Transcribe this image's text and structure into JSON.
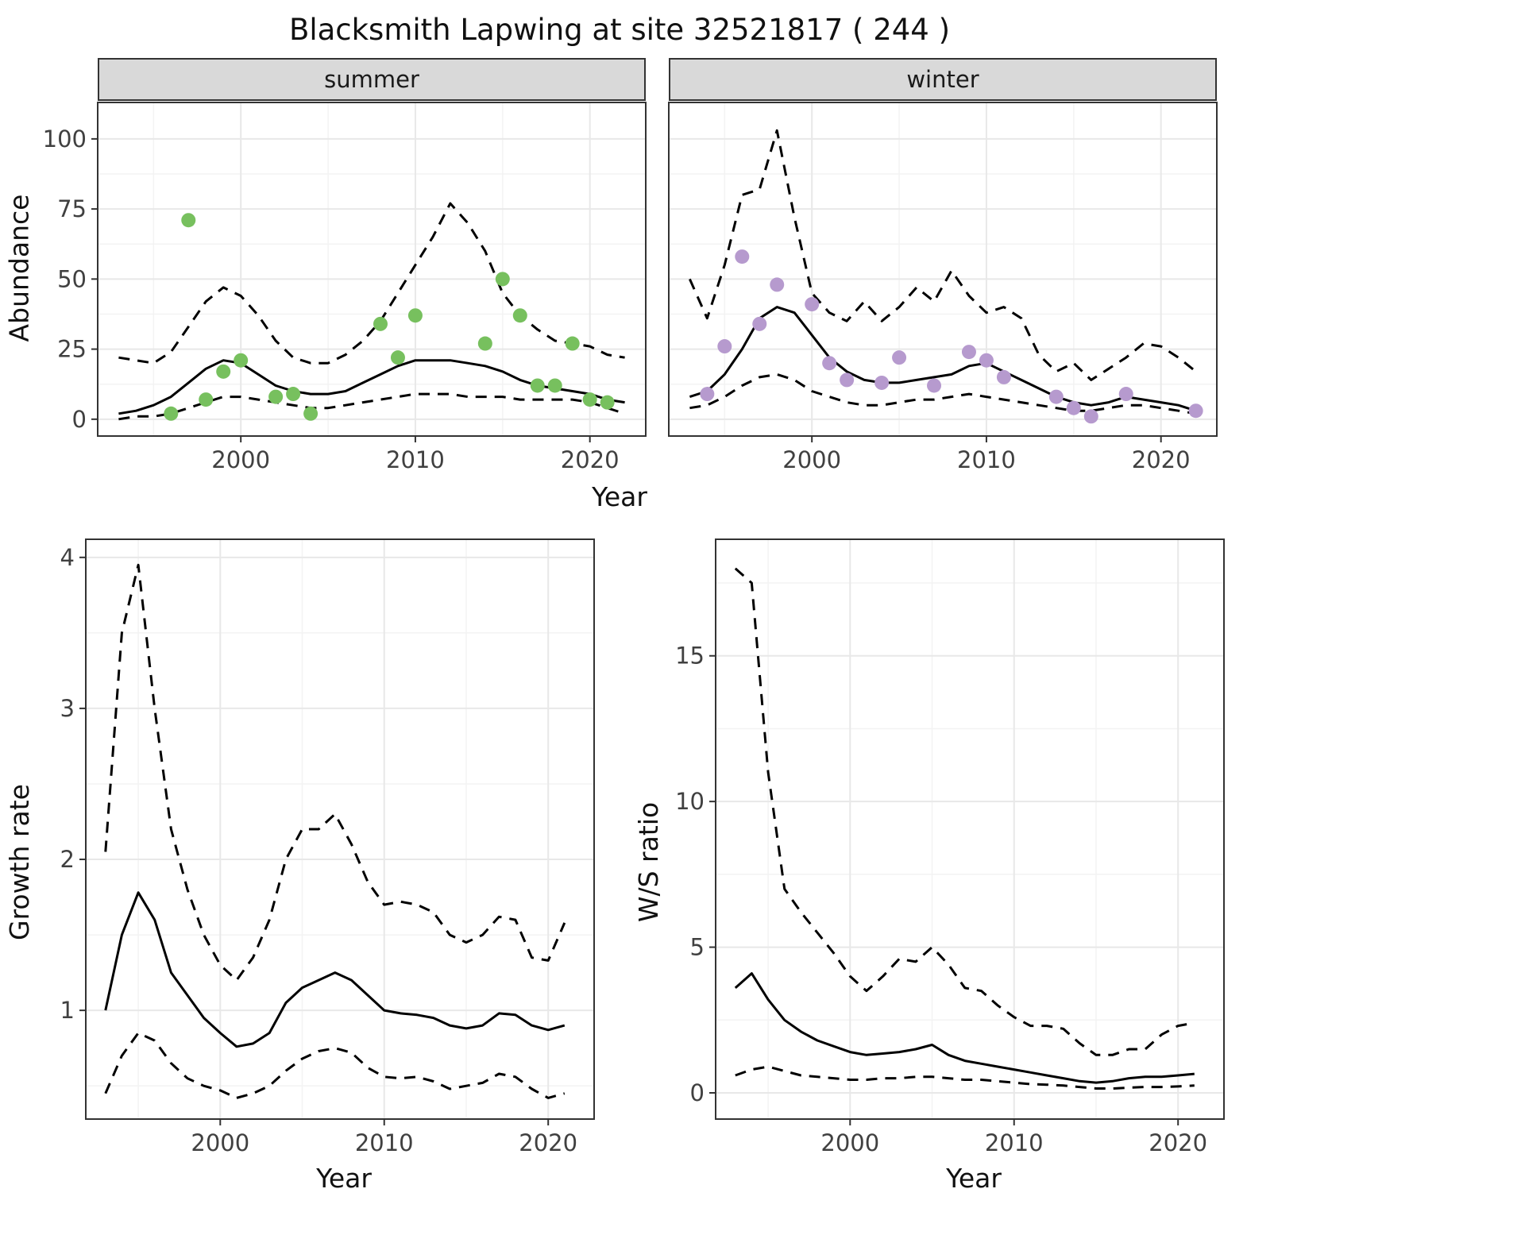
{
  "title": "Blacksmith Lapwing at site 32521817 ( 244 )",
  "top": {
    "ylabel": "Abundance",
    "xlabel": "Year",
    "facets": [
      {
        "label": "summer"
      },
      {
        "label": "winter"
      }
    ]
  },
  "bottom_left": {
    "ylabel": "Growth rate",
    "xlabel": "Year"
  },
  "bottom_right": {
    "ylabel": "W/S ratio",
    "xlabel": "Year"
  },
  "colors": {
    "summer_point": "#77c05e",
    "winter_point": "#b69ace",
    "line": "#000000",
    "grid_major": "#e8e8e8",
    "grid_minor": "#f3f3f3",
    "panel_border": "#333333",
    "strip_bg": "#d9d9d9",
    "tick_label": "#404040"
  },
  "chart_data": [
    {
      "target": "panel-summer",
      "type": "line",
      "facet": "summer",
      "xlabel": "Year",
      "ylabel": "Abundance",
      "xlim": [
        1991.8,
        2023.2
      ],
      "ylim": [
        -6,
        113
      ],
      "xticks": [
        2000,
        2010,
        2020
      ],
      "xminor": [
        1995,
        2005,
        2015
      ],
      "yticks": [
        0,
        25,
        50,
        75,
        100
      ],
      "yminor": [
        12.5,
        37.5,
        62.5,
        87.5
      ],
      "years": [
        1993,
        1994,
        1995,
        1996,
        1997,
        1998,
        1999,
        2000,
        2001,
        2002,
        2003,
        2004,
        2005,
        2006,
        2007,
        2008,
        2009,
        2010,
        2011,
        2012,
        2013,
        2014,
        2015,
        2016,
        2017,
        2018,
        2019,
        2020,
        2021,
        2022
      ],
      "series": [
        {
          "name": "ci_upper",
          "style": "dashed",
          "y": [
            22,
            21,
            20,
            24,
            33,
            42,
            47,
            44,
            37,
            28,
            22,
            20,
            20,
            23,
            28,
            35,
            45,
            55,
            65,
            77,
            70,
            60,
            45,
            37,
            32,
            28,
            27,
            26,
            23,
            22
          ]
        },
        {
          "name": "ci_lower",
          "style": "dashed",
          "y": [
            0,
            1,
            1,
            2,
            4,
            6,
            8,
            8,
            7,
            6,
            5,
            4,
            4,
            5,
            6,
            7,
            8,
            9,
            9,
            9,
            8,
            8,
            8,
            7,
            7,
            7,
            7,
            6,
            4,
            2
          ]
        },
        {
          "name": "mean",
          "style": "solid",
          "y": [
            2,
            3,
            5,
            8,
            13,
            18,
            21,
            20,
            16,
            12,
            10,
            9,
            9,
            10,
            13,
            16,
            19,
            21,
            21,
            21,
            20,
            19,
            17,
            14,
            12,
            11,
            10,
            9,
            7,
            6
          ]
        },
        {
          "name": "observed_counts",
          "style": "points",
          "color_key": "summer_point",
          "x": [
            1996,
            1997,
            1998,
            1999,
            2000,
            2002,
            2003,
            2004,
            2008,
            2009,
            2010,
            2014,
            2015,
            2016,
            2017,
            2018,
            2019,
            2020,
            2021
          ],
          "y": [
            2,
            71,
            7,
            17,
            21,
            8,
            9,
            2,
            34,
            22,
            37,
            27,
            50,
            37,
            12,
            12,
            27,
            7,
            6
          ]
        }
      ]
    },
    {
      "target": "panel-winter",
      "type": "line",
      "facet": "winter",
      "xlabel": "Year",
      "ylabel": "Abundance",
      "xlim": [
        1991.8,
        2023.2
      ],
      "ylim": [
        -6,
        113
      ],
      "xticks": [
        2000,
        2010,
        2020
      ],
      "xminor": [
        1995,
        2005,
        2015
      ],
      "yticks": [
        0,
        25,
        50,
        75,
        100
      ],
      "yminor": [
        12.5,
        37.5,
        62.5,
        87.5
      ],
      "years": [
        1993,
        1994,
        1995,
        1996,
        1997,
        1998,
        1999,
        2000,
        2001,
        2002,
        2003,
        2004,
        2005,
        2006,
        2007,
        2008,
        2009,
        2010,
        2011,
        2012,
        2013,
        2014,
        2015,
        2016,
        2017,
        2018,
        2019,
        2020,
        2021,
        2022
      ],
      "series": [
        {
          "name": "ci_upper",
          "style": "dashed",
          "y": [
            50,
            36,
            55,
            80,
            82,
            103,
            72,
            45,
            38,
            35,
            42,
            35,
            40,
            47,
            42,
            53,
            44,
            38,
            40,
            36,
            23,
            17,
            20,
            14,
            18,
            22,
            27,
            26,
            22,
            17
          ]
        },
        {
          "name": "ci_lower",
          "style": "dashed",
          "y": [
            4,
            5,
            8,
            12,
            15,
            16,
            14,
            10,
            8,
            6,
            5,
            5,
            6,
            7,
            7,
            8,
            9,
            8,
            7,
            6,
            5,
            4,
            3,
            3,
            4,
            5,
            5,
            4,
            3,
            2
          ]
        },
        {
          "name": "mean",
          "style": "solid",
          "y": [
            8,
            10,
            16,
            25,
            36,
            40,
            38,
            30,
            22,
            17,
            14,
            13,
            13,
            14,
            15,
            16,
            19,
            20,
            17,
            14,
            11,
            8,
            6,
            5,
            6,
            8,
            7,
            6,
            5,
            3
          ]
        },
        {
          "name": "observed_counts",
          "style": "points",
          "color_key": "winter_point",
          "x": [
            1994,
            1995,
            1996,
            1997,
            1998,
            2000,
            2001,
            2002,
            2004,
            2005,
            2007,
            2009,
            2010,
            2011,
            2014,
            2015,
            2016,
            2018,
            2022
          ],
          "y": [
            9,
            26,
            58,
            34,
            48,
            41,
            20,
            14,
            13,
            22,
            12,
            24,
            21,
            15,
            8,
            4,
            1,
            9,
            3
          ]
        }
      ]
    },
    {
      "target": "panel-growth",
      "type": "line",
      "xlabel": "Year",
      "ylabel": "Growth rate",
      "xlim": [
        1991.8,
        2022.8
      ],
      "ylim": [
        0.28,
        4.12
      ],
      "xticks": [
        2000,
        2010,
        2020
      ],
      "xminor": [
        1995,
        2005,
        2015
      ],
      "yticks": [
        1,
        2,
        3,
        4
      ],
      "yminor": [
        0.5,
        1.5,
        2.5,
        3.5
      ],
      "years": [
        1993,
        1994,
        1995,
        1996,
        1997,
        1998,
        1999,
        2000,
        2001,
        2002,
        2003,
        2004,
        2005,
        2006,
        2007,
        2008,
        2009,
        2010,
        2011,
        2012,
        2013,
        2014,
        2015,
        2016,
        2017,
        2018,
        2019,
        2020,
        2021
      ],
      "series": [
        {
          "name": "ci_upper",
          "style": "dashed",
          "y": [
            2.05,
            3.5,
            3.95,
            3.0,
            2.2,
            1.8,
            1.5,
            1.3,
            1.2,
            1.35,
            1.6,
            2.0,
            2.2,
            2.2,
            2.3,
            2.1,
            1.85,
            1.7,
            1.72,
            1.7,
            1.65,
            1.5,
            1.45,
            1.5,
            1.62,
            1.6,
            1.35,
            1.33,
            1.58
          ]
        },
        {
          "name": "ci_lower",
          "style": "dashed",
          "y": [
            0.45,
            0.7,
            0.85,
            0.8,
            0.65,
            0.55,
            0.5,
            0.47,
            0.42,
            0.45,
            0.5,
            0.6,
            0.68,
            0.73,
            0.75,
            0.72,
            0.62,
            0.56,
            0.55,
            0.56,
            0.53,
            0.48,
            0.5,
            0.52,
            0.58,
            0.56,
            0.48,
            0.42,
            0.45
          ]
        },
        {
          "name": "mean",
          "style": "solid",
          "y": [
            1.0,
            1.5,
            1.78,
            1.6,
            1.25,
            1.1,
            0.95,
            0.85,
            0.76,
            0.78,
            0.85,
            1.05,
            1.15,
            1.2,
            1.25,
            1.2,
            1.1,
            1.0,
            0.98,
            0.97,
            0.95,
            0.9,
            0.88,
            0.9,
            0.98,
            0.97,
            0.9,
            0.87,
            0.9
          ]
        }
      ]
    },
    {
      "target": "panel-ws",
      "type": "line",
      "xlabel": "Year",
      "ylabel": "W/S ratio",
      "xlim": [
        1991.8,
        2022.8
      ],
      "ylim": [
        -0.9,
        19
      ],
      "xticks": [
        2000,
        2010,
        2020
      ],
      "xminor": [
        1995,
        2005,
        2015
      ],
      "yticks": [
        0,
        5,
        10,
        15
      ],
      "yminor": [
        2.5,
        7.5,
        12.5,
        17.5
      ],
      "years": [
        1993,
        1994,
        1995,
        1996,
        1997,
        1998,
        1999,
        2000,
        2001,
        2002,
        2003,
        2004,
        2005,
        2006,
        2007,
        2008,
        2009,
        2010,
        2011,
        2012,
        2013,
        2014,
        2015,
        2016,
        2017,
        2018,
        2019,
        2020,
        2021
      ],
      "series": [
        {
          "name": "ci_upper",
          "style": "dashed",
          "y": [
            18.0,
            17.5,
            11.0,
            7.0,
            6.2,
            5.5,
            4.8,
            4.0,
            3.5,
            4.0,
            4.6,
            4.5,
            5.0,
            4.4,
            3.6,
            3.5,
            3.0,
            2.6,
            2.3,
            2.3,
            2.2,
            1.7,
            1.3,
            1.3,
            1.5,
            1.5,
            2.0,
            2.3,
            2.4
          ]
        },
        {
          "name": "ci_lower",
          "style": "dashed",
          "y": [
            0.6,
            0.8,
            0.9,
            0.75,
            0.6,
            0.55,
            0.5,
            0.45,
            0.45,
            0.5,
            0.5,
            0.55,
            0.55,
            0.5,
            0.45,
            0.45,
            0.4,
            0.35,
            0.3,
            0.28,
            0.25,
            0.2,
            0.15,
            0.15,
            0.18,
            0.2,
            0.2,
            0.22,
            0.25
          ]
        },
        {
          "name": "mean",
          "style": "solid",
          "y": [
            3.6,
            4.1,
            3.2,
            2.5,
            2.1,
            1.8,
            1.6,
            1.4,
            1.3,
            1.35,
            1.4,
            1.5,
            1.65,
            1.3,
            1.1,
            1.0,
            0.9,
            0.8,
            0.7,
            0.6,
            0.5,
            0.4,
            0.35,
            0.4,
            0.5,
            0.55,
            0.55,
            0.6,
            0.65
          ]
        }
      ]
    }
  ]
}
